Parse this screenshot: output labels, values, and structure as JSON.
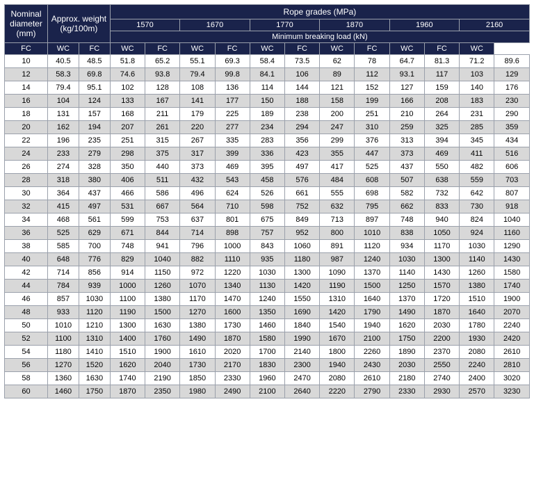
{
  "header": {
    "nominal_diameter": "Nominal diameter (mm)",
    "approx_weight": "Approx. weight (kg/100m)",
    "rope_grades": "Rope grades (MPa)",
    "min_breaking_load": "Minimum breaking load (kN)",
    "fc": "FC",
    "wc": "WC",
    "grades": [
      "1570",
      "1670",
      "1770",
      "1870",
      "1960",
      "2160"
    ]
  },
  "rows": [
    {
      "d": "10",
      "w_fc": "40.5",
      "w_wc": "48.5",
      "v": [
        "51.8",
        "65.2",
        "55.1",
        "69.3",
        "58.4",
        "73.5",
        "62",
        "78",
        "64.7",
        "81.3",
        "71.2",
        "89.6"
      ]
    },
    {
      "d": "12",
      "w_fc": "58.3",
      "w_wc": "69.8",
      "v": [
        "74.6",
        "93.8",
        "79.4",
        "99.8",
        "84.1",
        "106",
        "89",
        "112",
        "93.1",
        "117",
        "103",
        "129"
      ]
    },
    {
      "d": "14",
      "w_fc": "79.4",
      "w_wc": "95.1",
      "v": [
        "102",
        "128",
        "108",
        "136",
        "114",
        "144",
        "121",
        "152",
        "127",
        "159",
        "140",
        "176"
      ]
    },
    {
      "d": "16",
      "w_fc": "104",
      "w_wc": "124",
      "v": [
        "133",
        "167",
        "141",
        "177",
        "150",
        "188",
        "158",
        "199",
        "166",
        "208",
        "183",
        "230"
      ]
    },
    {
      "d": "18",
      "w_fc": "131",
      "w_wc": "157",
      "v": [
        "168",
        "211",
        "179",
        "225",
        "189",
        "238",
        "200",
        "251",
        "210",
        "264",
        "231",
        "290"
      ]
    },
    {
      "d": "20",
      "w_fc": "162",
      "w_wc": "194",
      "v": [
        "207",
        "261",
        "220",
        "277",
        "234",
        "294",
        "247",
        "310",
        "259",
        "325",
        "285",
        "359"
      ]
    },
    {
      "d": "22",
      "w_fc": "196",
      "w_wc": "235",
      "v": [
        "251",
        "315",
        "267",
        "335",
        "283",
        "356",
        "299",
        "376",
        "313",
        "394",
        "345",
        "434"
      ]
    },
    {
      "d": "24",
      "w_fc": "233",
      "w_wc": "279",
      "v": [
        "298",
        "375",
        "317",
        "399",
        "336",
        "423",
        "355",
        "447",
        "373",
        "469",
        "411",
        "516"
      ]
    },
    {
      "d": "26",
      "w_fc": "274",
      "w_wc": "328",
      "v": [
        "350",
        "440",
        "373",
        "469",
        "395",
        "497",
        "417",
        "525",
        "437",
        "550",
        "482",
        "606"
      ]
    },
    {
      "d": "28",
      "w_fc": "318",
      "w_wc": "380",
      "v": [
        "406",
        "511",
        "432",
        "543",
        "458",
        "576",
        "484",
        "608",
        "507",
        "638",
        "559",
        "703"
      ]
    },
    {
      "d": "30",
      "w_fc": "364",
      "w_wc": "437",
      "v": [
        "466",
        "586",
        "496",
        "624",
        "526",
        "661",
        "555",
        "698",
        "582",
        "732",
        "642",
        "807"
      ]
    },
    {
      "d": "32",
      "w_fc": "415",
      "w_wc": "497",
      "v": [
        "531",
        "667",
        "564",
        "710",
        "598",
        "752",
        "632",
        "795",
        "662",
        "833",
        "730",
        "918"
      ]
    },
    {
      "d": "34",
      "w_fc": "468",
      "w_wc": "561",
      "v": [
        "599",
        "753",
        "637",
        "801",
        "675",
        "849",
        "713",
        "897",
        "748",
        "940",
        "824",
        "1040"
      ]
    },
    {
      "d": "36",
      "w_fc": "525",
      "w_wc": "629",
      "v": [
        "671",
        "844",
        "714",
        "898",
        "757",
        "952",
        "800",
        "1010",
        "838",
        "1050",
        "924",
        "1160"
      ]
    },
    {
      "d": "38",
      "w_fc": "585",
      "w_wc": "700",
      "v": [
        "748",
        "941",
        "796",
        "1000",
        "843",
        "1060",
        "891",
        "1120",
        "934",
        "1170",
        "1030",
        "1290"
      ]
    },
    {
      "d": "40",
      "w_fc": "648",
      "w_wc": "776",
      "v": [
        "829",
        "1040",
        "882",
        "1110",
        "935",
        "1180",
        "987",
        "1240",
        "1030",
        "1300",
        "1140",
        "1430"
      ]
    },
    {
      "d": "42",
      "w_fc": "714",
      "w_wc": "856",
      "v": [
        "914",
        "1150",
        "972",
        "1220",
        "1030",
        "1300",
        "1090",
        "1370",
        "1140",
        "1430",
        "1260",
        "1580"
      ]
    },
    {
      "d": "44",
      "w_fc": "784",
      "w_wc": "939",
      "v": [
        "1000",
        "1260",
        "1070",
        "1340",
        "1130",
        "1420",
        "1190",
        "1500",
        "1250",
        "1570",
        "1380",
        "1740"
      ]
    },
    {
      "d": "46",
      "w_fc": "857",
      "w_wc": "1030",
      "v": [
        "1100",
        "1380",
        "1170",
        "1470",
        "1240",
        "1550",
        "1310",
        "1640",
        "1370",
        "1720",
        "1510",
        "1900"
      ]
    },
    {
      "d": "48",
      "w_fc": "933",
      "w_wc": "1120",
      "v": [
        "1190",
        "1500",
        "1270",
        "1600",
        "1350",
        "1690",
        "1420",
        "1790",
        "1490",
        "1870",
        "1640",
        "2070"
      ]
    },
    {
      "d": "50",
      "w_fc": "1010",
      "w_wc": "1210",
      "v": [
        "1300",
        "1630",
        "1380",
        "1730",
        "1460",
        "1840",
        "1540",
        "1940",
        "1620",
        "2030",
        "1780",
        "2240"
      ]
    },
    {
      "d": "52",
      "w_fc": "1100",
      "w_wc": "1310",
      "v": [
        "1400",
        "1760",
        "1490",
        "1870",
        "1580",
        "1990",
        "1670",
        "2100",
        "1750",
        "2200",
        "1930",
        "2420"
      ]
    },
    {
      "d": "54",
      "w_fc": "1180",
      "w_wc": "1410",
      "v": [
        "1510",
        "1900",
        "1610",
        "2020",
        "1700",
        "2140",
        "1800",
        "2260",
        "1890",
        "2370",
        "2080",
        "2610"
      ]
    },
    {
      "d": "56",
      "w_fc": "1270",
      "w_wc": "1520",
      "v": [
        "1620",
        "2040",
        "1730",
        "2170",
        "1830",
        "2300",
        "1940",
        "2430",
        "2030",
        "2550",
        "2240",
        "2810"
      ]
    },
    {
      "d": "58",
      "w_fc": "1360",
      "w_wc": "1630",
      "v": [
        "1740",
        "2190",
        "1850",
        "2330",
        "1960",
        "2470",
        "2080",
        "2610",
        "2180",
        "2740",
        "2400",
        "3020"
      ]
    },
    {
      "d": "60",
      "w_fc": "1460",
      "w_wc": "1750",
      "v": [
        "1870",
        "2350",
        "1980",
        "2490",
        "2100",
        "2640",
        "2220",
        "2790",
        "2330",
        "2930",
        "2570",
        "3230"
      ]
    }
  ],
  "style": {
    "header_bg": "#1a234b",
    "header_fg": "#ffffff",
    "row_even_bg": "#d8d8d8",
    "row_odd_bg": "#ffffff",
    "border_color": "#9aa0ab"
  }
}
